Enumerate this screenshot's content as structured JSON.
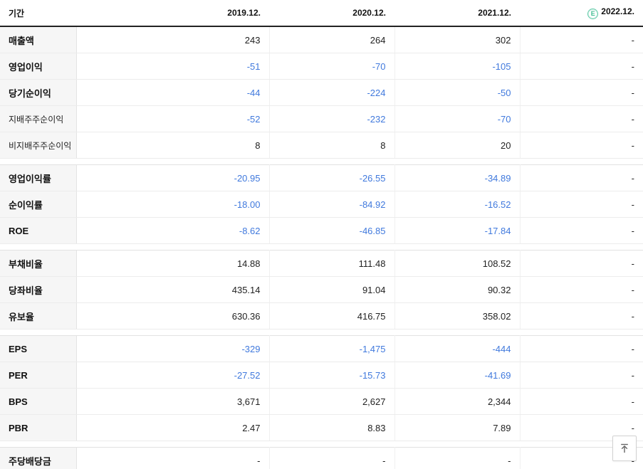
{
  "colors": {
    "negative_value_blue": "#4079dd",
    "estimate_icon_green": "#43bd93",
    "header_border_dark": "#222222",
    "row_label_background": "#f6f6f6"
  },
  "header": {
    "period_label": "기간",
    "columns": [
      "2019.12.",
      "2020.12.",
      "2021.12.",
      "2022.12."
    ],
    "estimate_icon_letter": "E",
    "estimate_column": "2022.12."
  },
  "table": {
    "groups": [
      {
        "rows": [
          {
            "label": "매출액",
            "sub": false,
            "values": [
              "243",
              "264",
              "302",
              "-"
            ]
          },
          {
            "label": "영업이익",
            "sub": false,
            "values": [
              "-51",
              "-70",
              "-105",
              "-"
            ]
          },
          {
            "label": "당기순이익",
            "sub": false,
            "values": [
              "-44",
              "-224",
              "-50",
              "-"
            ]
          },
          {
            "label": "지배주주순이익",
            "sub": true,
            "values": [
              "-52",
              "-232",
              "-70",
              "-"
            ]
          },
          {
            "label": "비지배주주순이익",
            "sub": true,
            "values": [
              "8",
              "8",
              "20",
              "-"
            ]
          }
        ]
      },
      {
        "rows": [
          {
            "label": "영업이익률",
            "sub": false,
            "values": [
              "-20.95",
              "-26.55",
              "-34.89",
              "-"
            ]
          },
          {
            "label": "순이익률",
            "sub": false,
            "values": [
              "-18.00",
              "-84.92",
              "-16.52",
              "-"
            ]
          },
          {
            "label": "ROE",
            "sub": false,
            "values": [
              "-8.62",
              "-46.85",
              "-17.84",
              "-"
            ]
          }
        ]
      },
      {
        "rows": [
          {
            "label": "부채비율",
            "sub": false,
            "values": [
              "14.88",
              "111.48",
              "108.52",
              "-"
            ]
          },
          {
            "label": "당좌비율",
            "sub": false,
            "values": [
              "435.14",
              "91.04",
              "90.32",
              "-"
            ]
          },
          {
            "label": "유보율",
            "sub": false,
            "values": [
              "630.36",
              "416.75",
              "358.02",
              "-"
            ]
          }
        ]
      },
      {
        "rows": [
          {
            "label": "EPS",
            "sub": false,
            "values": [
              "-329",
              "-1,475",
              "-444",
              "-"
            ]
          },
          {
            "label": "PER",
            "sub": false,
            "values": [
              "-27.52",
              "-15.73",
              "-41.69",
              "-"
            ]
          },
          {
            "label": "BPS",
            "sub": false,
            "values": [
              "3,671",
              "2,627",
              "2,344",
              "-"
            ]
          },
          {
            "label": "PBR",
            "sub": false,
            "values": [
              "2.47",
              "8.83",
              "7.89",
              "-"
            ]
          }
        ]
      },
      {
        "rows": [
          {
            "label": "주당배당금",
            "sub": false,
            "values": [
              "-",
              "-",
              "-",
              "-"
            ]
          }
        ]
      }
    ]
  },
  "scroll_top_button": {
    "name": "scroll-to-top"
  }
}
